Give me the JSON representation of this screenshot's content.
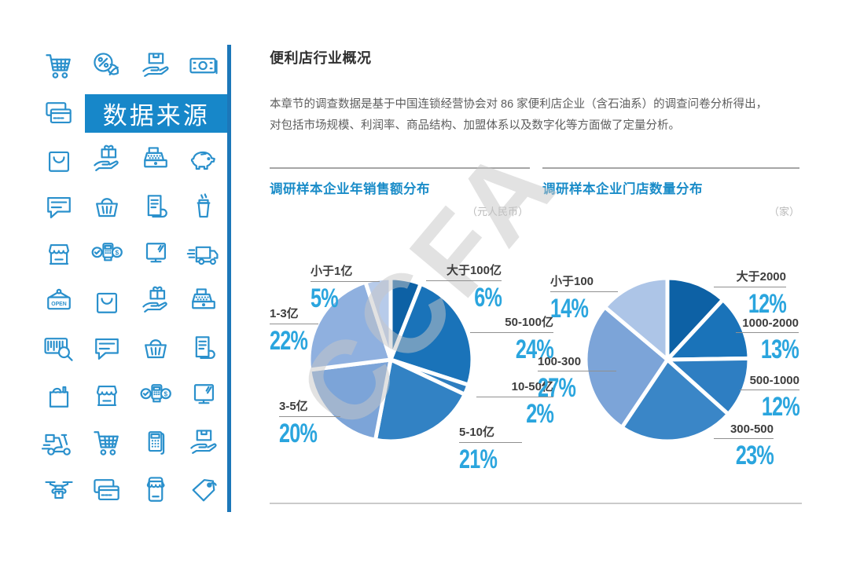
{
  "sidebar": {
    "banner_label": "数据来源",
    "open_sign_text": "OPEN",
    "icon_color": "#2a90cc",
    "banner_bg": "#1787c9",
    "divider_color": "#1c77b9",
    "grid": [
      [
        "shopping-cart",
        "discount-percent",
        "package-in-hand",
        "money-bill"
      ],
      [
        "credit-cards",
        "__banner__"
      ],
      [
        "shopping-bag",
        "gift-in-hand",
        "cash-register",
        "piggy-bank"
      ],
      [
        "chat-bubble",
        "shopping-basket",
        "receipt",
        "drink-cup"
      ],
      [
        "storefront",
        "pos-payment",
        "monitor",
        "delivery-truck"
      ],
      [
        "open-sign",
        "shopping-bag",
        "gift-in-hand",
        "cash-register"
      ],
      [
        "barcode-search",
        "chat-bubble",
        "shopping-basket",
        "receipt"
      ],
      [
        "grocery-bag",
        "storefront",
        "pos-payment",
        "monitor"
      ],
      [
        "delivery-scooter",
        "shopping-cart",
        "calculator",
        "package-in-hand"
      ],
      [
        "delivery-drone",
        "credit-cards",
        "mobile-store",
        "price-tag"
      ]
    ]
  },
  "main": {
    "title": "便利店行业概况",
    "paragraph": "本章节的调查数据是基于中国连锁经营协会对 86 家便利店企业（含石油系）的调查问卷分析得出，\n对包括市场规模、利润率、商品结构、加盟体系以及数字化等方面做了定量分析。",
    "watermark": "CCFA"
  },
  "colors": {
    "chart_title": "#1a8cc8",
    "percent_text": "#2aa5de",
    "category_text": "#3d3d3d",
    "unit_text": "#b9b9b9"
  },
  "chart_data": [
    {
      "type": "pie",
      "title": "调研样本企业年销售额分布",
      "unit": "（元人民币）",
      "start_angle_deg": -90,
      "direction": "clockwise",
      "slices": [
        {
          "label": "大于100亿",
          "value": 6,
          "color": "#0d61a5"
        },
        {
          "label": "50-100亿",
          "value": 24,
          "color": "#1a73b9"
        },
        {
          "label": "10-50亿",
          "value": 2,
          "color": "#2e7ec0"
        },
        {
          "label": "5-10亿",
          "value": 21,
          "color": "#3282c4"
        },
        {
          "label": "3-5亿",
          "value": 20,
          "color": "#7ca4d8"
        },
        {
          "label": "1-3亿",
          "value": 22,
          "color": "#8fb0df"
        },
        {
          "label": "小于1亿",
          "value": 5,
          "color": "#b7cbea"
        }
      ]
    },
    {
      "type": "pie",
      "title": "调研样本企业门店数量分布",
      "unit": "（家）",
      "start_angle_deg": -90,
      "direction": "clockwise",
      "slices": [
        {
          "label": "大于2000",
          "value": 12,
          "color": "#0d61a5"
        },
        {
          "label": "1000-2000",
          "value": 13,
          "color": "#1a73b9"
        },
        {
          "label": "500-1000",
          "value": 12,
          "color": "#2e7ec2"
        },
        {
          "label": "300-500",
          "value": 23,
          "color": "#3a86c7"
        },
        {
          "label": "100-300",
          "value": 27,
          "color": "#7ca4d8"
        },
        {
          "label": "小于100",
          "value": 14,
          "color": "#adc5e7"
        }
      ]
    }
  ]
}
